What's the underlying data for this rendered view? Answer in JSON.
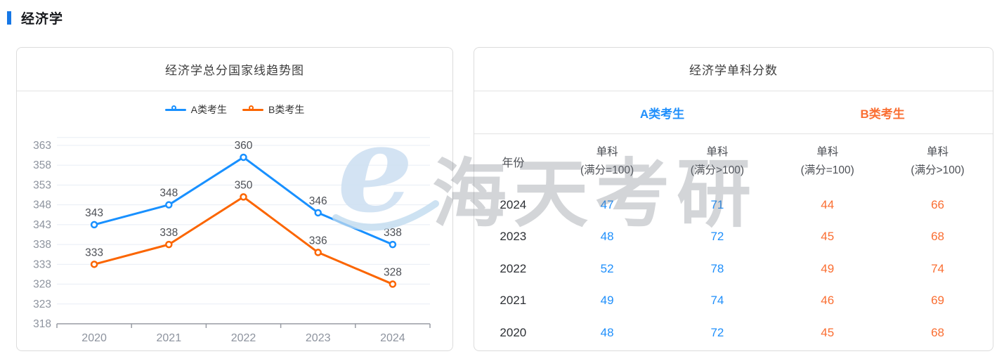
{
  "page": {
    "section_title": "经济学",
    "accent_color": "#1677e6"
  },
  "chart_card": {
    "title": "经济学总分国家线趋势图",
    "legend": [
      {
        "label": "A类考生",
        "color": "#1890ff"
      },
      {
        "label": "B类考生",
        "color": "#fb6500"
      }
    ]
  },
  "chart_data": {
    "type": "line",
    "title": "经济学总分国家线趋势图",
    "categories": [
      "2020",
      "2021",
      "2022",
      "2023",
      "2024"
    ],
    "series": [
      {
        "name": "A类考生",
        "color": "#1890ff",
        "values": [
          343,
          348,
          360,
          346,
          338
        ]
      },
      {
        "name": "B类考生",
        "color": "#fb6500",
        "values": [
          333,
          338,
          350,
          336,
          328
        ]
      }
    ],
    "yticks": [
      318,
      323,
      328,
      333,
      338,
      343,
      348,
      353,
      358,
      363
    ],
    "ylim": [
      318,
      365
    ],
    "grid": true,
    "data_labels": true,
    "legend_position": "top",
    "axis_color": "#989ca4",
    "grid_color": "#e8edf5",
    "tick_label_color": "#8d939e",
    "data_label_color": "#4c4f55"
  },
  "table_card": {
    "title": "经济学单科分数",
    "groups": [
      {
        "label": "A类考生",
        "color": "#1f8ffb"
      },
      {
        "label": "B类考生",
        "color": "#fa6e32"
      }
    ],
    "year_header": "年份",
    "sub_headers": [
      {
        "line1": "单科",
        "line2": "(满分=100)"
      },
      {
        "line1": "单科",
        "line2": "(满分>100)"
      },
      {
        "line1": "单科",
        "line2": "(满分=100)"
      },
      {
        "line1": "单科",
        "line2": "(满分>100)"
      }
    ],
    "rows": [
      {
        "year": "2024",
        "a1": "47",
        "a2": "71",
        "b1": "44",
        "b2": "66"
      },
      {
        "year": "2023",
        "a1": "48",
        "a2": "72",
        "b1": "45",
        "b2": "68"
      },
      {
        "year": "2022",
        "a1": "52",
        "a2": "78",
        "b1": "49",
        "b2": "74"
      },
      {
        "year": "2021",
        "a1": "49",
        "a2": "74",
        "b1": "46",
        "b2": "69"
      },
      {
        "year": "2020",
        "a1": "48",
        "a2": "72",
        "b1": "45",
        "b2": "68"
      }
    ]
  },
  "watermark": {
    "logo_char": "e",
    "text": "海天考研",
    "logo_color": "#cfe1f2",
    "text_color": "#6e737d"
  }
}
